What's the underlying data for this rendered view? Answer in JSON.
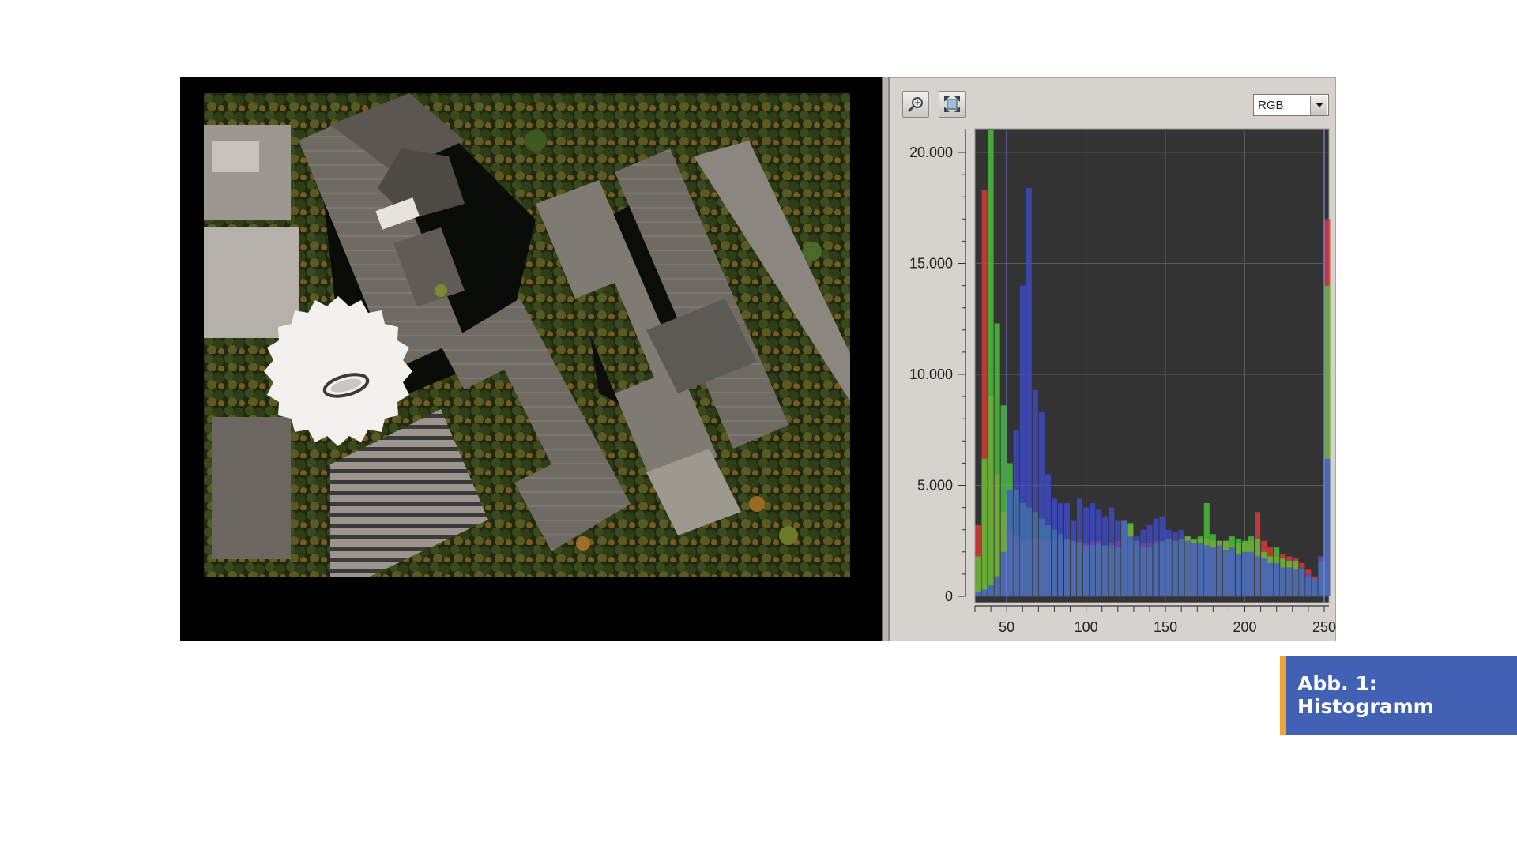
{
  "histogram": {
    "channel_select": {
      "value": "RGB"
    },
    "zoom_tool": {
      "icon": "zoom-magnifier-icon"
    },
    "fit_tool": {
      "icon": "fit-view-icon"
    },
    "colors": {
      "red": "#d63a3a",
      "green": "#4ccf3a",
      "blue": "#3f4fe0",
      "plot_bg": "#333333"
    }
  },
  "chart_data": {
    "type": "bar",
    "title": "",
    "xlabel": "",
    "ylabel": "",
    "xlim": [
      30,
      253
    ],
    "ylim": [
      0,
      20000
    ],
    "x_ticks": [
      {
        "value": 50,
        "label": "50"
      },
      {
        "value": 100,
        "label": "100"
      },
      {
        "value": 150,
        "label": "150"
      },
      {
        "value": 200,
        "label": "200"
      },
      {
        "value": 250,
        "label": "250"
      }
    ],
    "y_ticks": [
      {
        "value": 0,
        "label": "0"
      },
      {
        "value": 5000,
        "label": "5.000"
      },
      {
        "value": 10000,
        "label": "10.000"
      },
      {
        "value": 15000,
        "label": "15.000"
      },
      {
        "value": 20000,
        "label": "20.000"
      }
    ],
    "grid": true,
    "series": [
      {
        "color": "red",
        "x": [
          30,
          34,
          38,
          42,
          46,
          50,
          54,
          58,
          62,
          66,
          70,
          74,
          78,
          82,
          86,
          90,
          94,
          98,
          102,
          106,
          110,
          114,
          118,
          122,
          126,
          130,
          134,
          138,
          142,
          146,
          150,
          154,
          158,
          162,
          166,
          170,
          174,
          178,
          182,
          186,
          190,
          194,
          198,
          202,
          206,
          210,
          214,
          218,
          222,
          226,
          230,
          234,
          238,
          242,
          246,
          250
        ],
        "values": [
          3200,
          18300,
          9000,
          5500,
          3800,
          3000,
          2700,
          2500,
          2500,
          2600,
          2600,
          2500,
          2500,
          2400,
          2500,
          2400,
          2500,
          2400,
          2500,
          2500,
          2300,
          2400,
          2500,
          3400,
          3200,
          2500,
          2400,
          2400,
          2500,
          2400,
          2600,
          2500,
          2500,
          2700,
          2500,
          2600,
          2600,
          2500,
          2500,
          2500,
          2300,
          2400,
          2400,
          2500,
          3800,
          2500,
          2200,
          1800,
          1900,
          1800,
          1700,
          1500,
          1200,
          900,
          1800,
          17000
        ]
      },
      {
        "color": "green",
        "x": [
          30,
          34,
          38,
          42,
          46,
          50,
          54,
          58,
          62,
          66,
          70,
          74,
          78,
          82,
          86,
          90,
          94,
          98,
          102,
          106,
          110,
          114,
          118,
          122,
          126,
          130,
          134,
          138,
          142,
          146,
          150,
          154,
          158,
          162,
          166,
          170,
          174,
          178,
          182,
          186,
          190,
          194,
          198,
          202,
          206,
          210,
          214,
          218,
          222,
          226,
          230,
          234,
          238,
          242,
          246,
          250
        ],
        "values": [
          1800,
          6200,
          21000,
          12300,
          8600,
          6000,
          4800,
          4200,
          4000,
          3800,
          3500,
          3200,
          3000,
          2800,
          2600,
          2500,
          2400,
          2300,
          2300,
          2400,
          2300,
          2300,
          2200,
          3400,
          3300,
          2500,
          2200,
          2200,
          2400,
          2500,
          2600,
          2500,
          2600,
          2700,
          2600,
          2700,
          4200,
          2800,
          2500,
          2500,
          2700,
          2600,
          2500,
          2700,
          2600,
          2000,
          1800,
          2200,
          1700,
          1600,
          1600,
          1200,
          900,
          800,
          1600,
          14000
        ]
      },
      {
        "color": "blue",
        "x": [
          30,
          34,
          38,
          42,
          46,
          50,
          54,
          58,
          62,
          66,
          70,
          74,
          78,
          82,
          86,
          90,
          94,
          98,
          102,
          106,
          110,
          114,
          118,
          122,
          126,
          130,
          134,
          138,
          142,
          146,
          150,
          154,
          158,
          162,
          166,
          170,
          174,
          178,
          182,
          186,
          190,
          194,
          198,
          202,
          206,
          210,
          214,
          218,
          222,
          226,
          230,
          234,
          238,
          242,
          246,
          250
        ],
        "values": [
          200,
          300,
          500,
          900,
          2000,
          4800,
          7500,
          14000,
          18400,
          9300,
          8300,
          5500,
          4400,
          4200,
          4200,
          3400,
          4400,
          4000,
          4200,
          3900,
          3600,
          4000,
          3400,
          3400,
          2700,
          2700,
          3000,
          3200,
          3500,
          3600,
          3000,
          2900,
          3000,
          2500,
          2400,
          2400,
          2300,
          2200,
          2300,
          2100,
          2200,
          1900,
          2000,
          2000,
          1800,
          1700,
          1500,
          1500,
          1300,
          1300,
          1200,
          1300,
          1000,
          800,
          1800,
          6200
        ]
      }
    ]
  },
  "caption": {
    "text": "Abb. 1: Histogramm"
  }
}
